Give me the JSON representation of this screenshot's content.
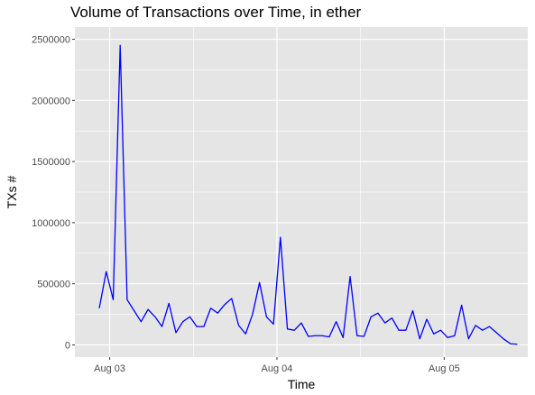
{
  "chart_data": {
    "type": "line",
    "title": "Volume of Transactions over Time, in ether",
    "xlabel": "Time",
    "ylabel": "TXs #",
    "x_ticks": [
      {
        "label": "Aug 03",
        "value": 0
      },
      {
        "label": "Aug 04",
        "value": 24
      },
      {
        "label": "Aug 05",
        "value": 48
      }
    ],
    "y_ticks": [
      0,
      500000,
      1000000,
      1500000,
      2000000,
      2500000
    ],
    "y_tick_labels": [
      "0",
      "500000",
      "1000000",
      "1500000",
      "2000000",
      "2500000"
    ],
    "xlim": [
      -5,
      60
    ],
    "ylim": [
      -100000,
      2600000
    ],
    "grid": true,
    "background": "#e5e5e5",
    "grid_color": "#ffffff",
    "series": [
      {
        "color": "#0000ff",
        "x": [
          -1.5,
          -0.5,
          0.5,
          1.5,
          2.5,
          3.5,
          4.5,
          5.5,
          6.5,
          7.5,
          8.5,
          9.5,
          10.5,
          11.5,
          12.5,
          13.5,
          14.5,
          15.5,
          16.5,
          17.5,
          18.5,
          19.5,
          20.5,
          21.5,
          22.5,
          23.5,
          24.5,
          25.5,
          26.5,
          27.5,
          28.5,
          29.5,
          30.5,
          31.5,
          32.5,
          33.5,
          34.5,
          35.5,
          36.5,
          37.5,
          38.5,
          39.5,
          40.5,
          41.5,
          42.5,
          43.5,
          44.5,
          45.5,
          46.5,
          47.5,
          48.5,
          49.5,
          50.5,
          51.5,
          52.5,
          53.5,
          54.5,
          55.5,
          56.5,
          57.5,
          58.5
        ],
        "y": [
          300000,
          600000,
          370000,
          2450000,
          370000,
          280000,
          190000,
          290000,
          230000,
          150000,
          340000,
          100000,
          190000,
          230000,
          150000,
          150000,
          300000,
          260000,
          330000,
          380000,
          160000,
          90000,
          250000,
          510000,
          230000,
          170000,
          880000,
          130000,
          120000,
          180000,
          70000,
          75000,
          75000,
          65000,
          190000,
          60000,
          560000,
          75000,
          70000,
          230000,
          260000,
          180000,
          220000,
          120000,
          120000,
          280000,
          50000,
          210000,
          90000,
          120000,
          60000,
          75000,
          325000,
          50000,
          160000,
          120000,
          150000,
          100000,
          50000,
          10000,
          5000
        ]
      }
    ]
  }
}
